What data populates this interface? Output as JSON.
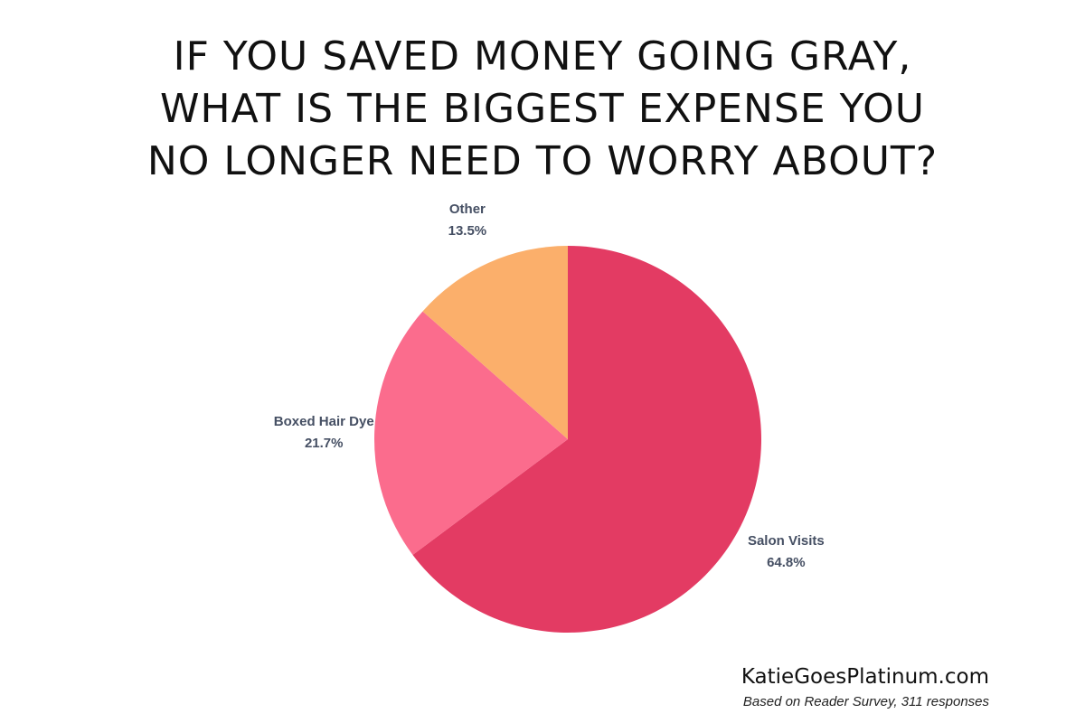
{
  "chart_data": {
    "type": "pie",
    "title_lines": [
      "IF YOU SAVED MONEY GOING GRAY,",
      "WHAT IS THE BIGGEST EXPENSE YOU",
      "NO LONGER NEED TO WORRY ABOUT?"
    ],
    "slices": [
      {
        "name": "Salon Visits",
        "value": 64.8,
        "value_label": "64.8%",
        "color": "#e33b63"
      },
      {
        "name": "Boxed Hair Dye",
        "value": 21.7,
        "value_label": "21.7%",
        "color": "#fb6c8d"
      },
      {
        "name": "Other",
        "value": 13.5,
        "value_label": "13.5%",
        "color": "#fbaf6b"
      }
    ],
    "start_angle": "top",
    "direction": "clockwise",
    "label_color": "#454f63"
  },
  "footer": {
    "site": "KatieGoesPlatinum.com",
    "source": "Based on Reader Survey, 311 responses"
  }
}
